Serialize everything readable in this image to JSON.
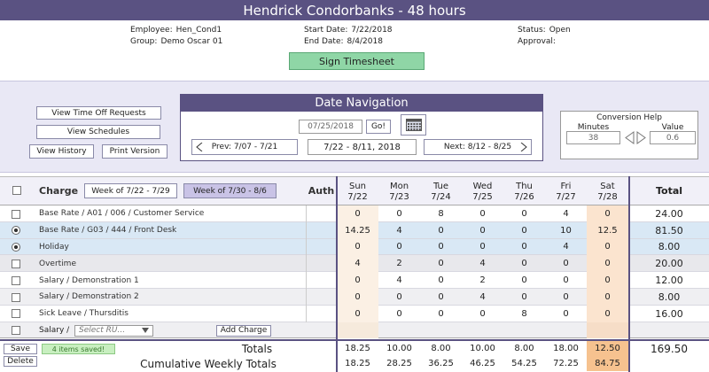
{
  "header": {
    "title": "Hendrick Condorbanks - 48 hours"
  },
  "info": [
    {
      "label": "Employee:",
      "value": "Hen_Cond1"
    },
    {
      "label": "Group:",
      "value": "Demo Oscar 01"
    },
    {
      "label": "Start Date:",
      "value": "7/22/2018"
    },
    {
      "label": "End Date:",
      "value": "8/4/2018"
    },
    {
      "label": "Status:",
      "value": "Open"
    },
    {
      "label": "Approval:"
    }
  ],
  "sign_button": "Sign Timesheet",
  "side_buttons": [
    "View Time Off Requests",
    "View Schedules",
    "View History",
    "Print Version"
  ],
  "date_navigation": {
    "title": "Date Navigation",
    "date": "07/25/2018",
    "go": "Go!",
    "prev": "Prev: 7/07 - 7/21",
    "range": "7/22 - 8/11, 2018",
    "next": "Next: 8/12 - 8/25"
  },
  "conversion_help": {
    "title": "Conversion Help",
    "minutes_label": "Minutes",
    "minutes": "38",
    "value_label": "Value",
    "value": "0.6"
  },
  "table": {
    "charge_header": "Charge",
    "weeks": [
      "Week of 7/22 - 7/29",
      "Week of 7/30 - 8/6"
    ],
    "auth_header": "Auth",
    "days": [
      {
        "day": "Sun",
        "date": "7/22"
      },
      {
        "day": "Mon",
        "date": "7/23"
      },
      {
        "day": "Tue",
        "date": "7/24"
      },
      {
        "day": "Wed",
        "date": "7/25"
      },
      {
        "day": "Thu",
        "date": "7/26"
      },
      {
        "day": "Fri",
        "date": "7/27"
      },
      {
        "day": "Sat",
        "date": "7/28"
      }
    ],
    "total_header": "Total",
    "rows": [
      {
        "charge": "Base Rate / A01 / 006 / Customer Service",
        "hours": [
          "0",
          "0",
          "8",
          "0",
          "0",
          "4",
          "0"
        ],
        "total": "24.00"
      },
      {
        "charge": "Base Rate / G03 / 444 / Front Desk",
        "hours": [
          "14.25",
          "4",
          "0",
          "0",
          "0",
          "10",
          "12.5"
        ],
        "total": "81.50"
      },
      {
        "charge": "Holiday",
        "hours": [
          "0",
          "0",
          "0",
          "0",
          "0",
          "4",
          "0"
        ],
        "total": "8.00"
      },
      {
        "charge": "Overtime",
        "hours": [
          "4",
          "2",
          "0",
          "4",
          "0",
          "0",
          "0"
        ],
        "total": "20.00"
      },
      {
        "charge": "Salary / Demonstration 1",
        "hours": [
          "0",
          "4",
          "0",
          "2",
          "0",
          "0",
          "0"
        ],
        "total": "12.00"
      },
      {
        "charge": "Salary / Demonstration 2",
        "hours": [
          "0",
          "0",
          "0",
          "4",
          "0",
          "0",
          "0"
        ],
        "total": "8.00"
      },
      {
        "charge": "Sick Leave / Thursditis",
        "hours": [
          "0",
          "0",
          "0",
          "0",
          "8",
          "0",
          "0"
        ],
        "total": "16.00"
      }
    ],
    "new_row": {
      "charge": "Salary /",
      "select": "Select RU...",
      "button": "Add Charge"
    },
    "totals": {
      "label": "Totals",
      "hours": [
        "18.25",
        "10.00",
        "8.00",
        "10.00",
        "8.00",
        "18.00",
        "12.50"
      ],
      "total": "169.50"
    },
    "cumulative": {
      "label": "Cumulative Weekly Totals",
      "hours": [
        "18.25",
        "28.25",
        "36.25",
        "46.25",
        "54.25",
        "72.25",
        "84.75"
      ]
    }
  },
  "footer": {
    "save": "Save",
    "delete": "Delete",
    "status": "4 items saved!"
  }
}
